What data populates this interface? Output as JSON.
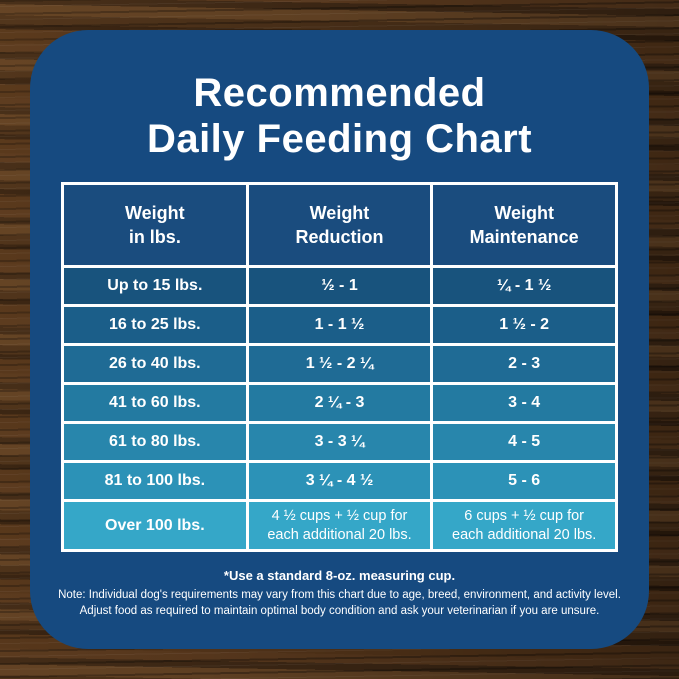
{
  "title": {
    "line1": "Recommended",
    "line2": "Daily Feeding Chart"
  },
  "chart_data": {
    "type": "table",
    "title": "Recommended Daily Feeding Chart",
    "columns": [
      "Weight\nin lbs.",
      "Weight\nReduction",
      "Weight\nMaintenance"
    ],
    "rows": [
      {
        "weight": "Up to 15 lbs.",
        "reduction": "½ - 1",
        "maintenance": "¼ - 1 ½"
      },
      {
        "weight": "16 to 25 lbs.",
        "reduction": "1 - 1 ½",
        "maintenance": "1 ½ - 2"
      },
      {
        "weight": "26 to 40 lbs.",
        "reduction": "1 ½ - 2 ¼",
        "maintenance": "2 - 3"
      },
      {
        "weight": "41 to 60 lbs.",
        "reduction": "2 ¼ - 3",
        "maintenance": "3 - 4"
      },
      {
        "weight": "61 to 80 lbs.",
        "reduction": "3 - 3 ¼",
        "maintenance": "4 - 5"
      },
      {
        "weight": "81 to 100 lbs.",
        "reduction": "3 ¼ - 4 ½",
        "maintenance": "5 - 6"
      },
      {
        "weight": "Over 100 lbs.",
        "reduction": "4 ½ cups + ½ cup for\neach additional 20 lbs.",
        "maintenance": "6 cups + ½ cup for\neach additional 20 lbs."
      }
    ],
    "footnote": "*Use a standard 8-oz. measuring cup.",
    "notes": [
      "Note: Individual dog's requirements may vary from this chart due to age, breed, environment, and activity level.",
      "Adjust food as required to maintain optimal body condition and ask your veterinarian if you are unsure."
    ],
    "legend_position": "none",
    "grid": true
  },
  "colors": {
    "card_background": "#164a80",
    "header_cell_background": "#1a4c7e",
    "row_backgrounds": [
      "#18537d",
      "#1b5e89",
      "#1f6b95",
      "#237aa1",
      "#2886ac",
      "#2c92b7",
      "#35a7c8"
    ],
    "grid_border": "#ffffff",
    "text": "#ffffff",
    "wood_background": "#462d18"
  }
}
